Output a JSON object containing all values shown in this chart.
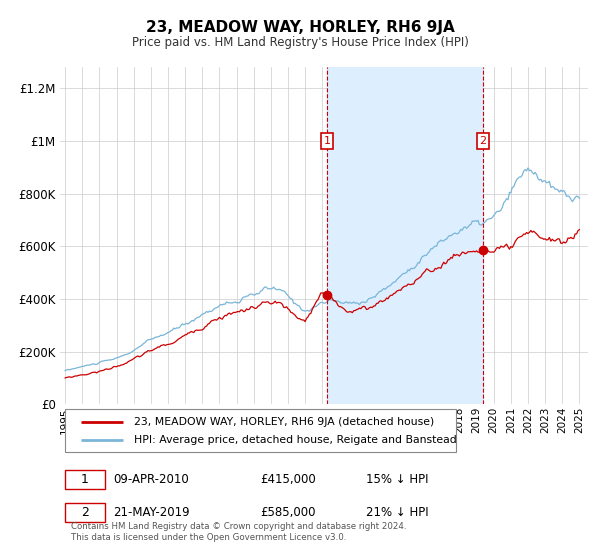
{
  "title": "23, MEADOW WAY, HORLEY, RH6 9JA",
  "subtitle": "Price paid vs. HM Land Registry's House Price Index (HPI)",
  "ylim": [
    0,
    1280000
  ],
  "xlim_start": 1994.7,
  "xlim_end": 2025.5,
  "bg_color": "#ffffff",
  "fig_color": "#ffffff",
  "shade_color": "#ddeeff",
  "hpi_color": "#7ab5d8",
  "price_color": "#cc0000",
  "sale1_x": 2010.27,
  "sale1_y": 415000,
  "sale2_x": 2019.38,
  "sale2_y": 585000,
  "legend_label1": "23, MEADOW WAY, HORLEY, RH6 9JA (detached house)",
  "legend_label2": "HPI: Average price, detached house, Reigate and Banstead",
  "table_row1_num": "1",
  "table_row1_date": "09-APR-2010",
  "table_row1_price": "£415,000",
  "table_row1_hpi": "15% ↓ HPI",
  "table_row2_num": "2",
  "table_row2_date": "21-MAY-2019",
  "table_row2_price": "£585,000",
  "table_row2_hpi": "21% ↓ HPI",
  "footer": "Contains HM Land Registry data © Crown copyright and database right 2024.\nThis data is licensed under the Open Government Licence v3.0."
}
